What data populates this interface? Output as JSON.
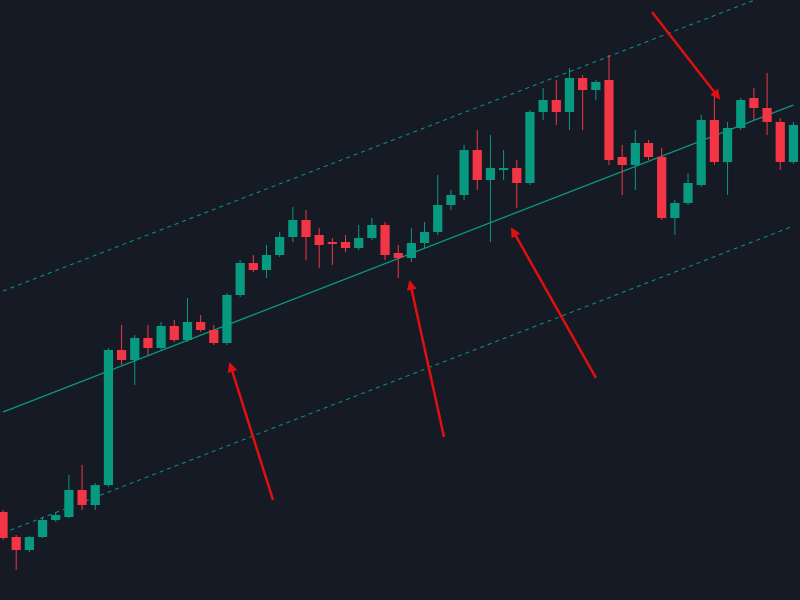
{
  "chart_data": {
    "type": "candlestick",
    "xlim": [
      -0.23,
      60.5
    ],
    "ylim": [
      0,
      600
    ],
    "up_color": "#089981",
    "down_color": "#f23645",
    "open": [
      88,
      63,
      50,
      63,
      80,
      83,
      110,
      95,
      115,
      250,
      240,
      262,
      252,
      274,
      260,
      278,
      270,
      257,
      305,
      337,
      330,
      345,
      363,
      380,
      365,
      358,
      358,
      352,
      362,
      375,
      347,
      342,
      357,
      368,
      395,
      405,
      450,
      420,
      430,
      432,
      417,
      488,
      500,
      488,
      522,
      510,
      520,
      443,
      435,
      457,
      443,
      382,
      397,
      415,
      480,
      438,
      472,
      502,
      492,
      478,
      438
    ],
    "high": [
      90,
      65,
      64,
      83,
      88,
      125,
      135,
      117,
      252,
      275,
      265,
      275,
      278,
      280,
      302,
      285,
      275,
      307,
      340,
      345,
      355,
      368,
      393,
      390,
      372,
      362,
      365,
      375,
      382,
      378,
      355,
      372,
      378,
      425,
      410,
      455,
      470,
      465,
      450,
      440,
      490,
      512,
      520,
      532,
      525,
      520,
      545,
      455,
      470,
      460,
      452,
      400,
      427,
      485,
      505,
      478,
      502,
      512,
      527,
      482,
      478
    ],
    "low": [
      60,
      30,
      48,
      62,
      78,
      82,
      90,
      90,
      113,
      235,
      215,
      245,
      250,
      258,
      258,
      268,
      255,
      255,
      303,
      328,
      322,
      343,
      358,
      340,
      332,
      335,
      348,
      350,
      360,
      340,
      322,
      338,
      352,
      365,
      390,
      400,
      410,
      358,
      420,
      392,
      415,
      480,
      475,
      470,
      470,
      500,
      435,
      405,
      410,
      440,
      380,
      365,
      395,
      413,
      435,
      405,
      470,
      480,
      465,
      430,
      436
    ],
    "close": [
      62,
      50,
      63,
      80,
      85,
      110,
      95,
      115,
      250,
      240,
      262,
      252,
      274,
      260,
      278,
      270,
      257,
      305,
      337,
      330,
      345,
      363,
      380,
      363,
      355,
      356,
      352,
      362,
      375,
      345,
      342,
      357,
      368,
      395,
      405,
      450,
      420,
      432,
      432,
      417,
      488,
      500,
      488,
      522,
      510,
      518,
      440,
      435,
      457,
      443,
      382,
      397,
      417,
      480,
      438,
      472,
      500,
      492,
      478,
      438,
      475
    ],
    "channel": {
      "x": [
        0,
        60
      ],
      "color": "#089981",
      "center": [
        188,
        495
      ],
      "upper": [
        309,
        615
      ],
      "lower": [
        67,
        374
      ]
    }
  }
}
